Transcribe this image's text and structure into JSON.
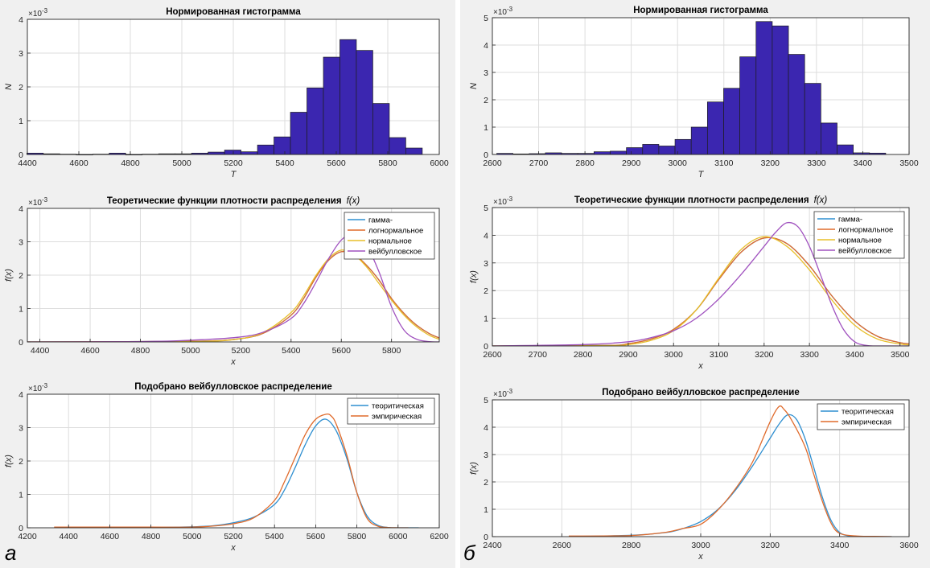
{
  "panel_labels": {
    "left": "а",
    "right": "б"
  },
  "exponent_label": "×10",
  "exponent_power": "-3",
  "colors": {
    "bar_fill": "#3b26b0",
    "bar_edge": "#1e1e1e",
    "series": [
      "#2f8fd0",
      "#e06b2c",
      "#e8bf2a",
      "#a052bf"
    ],
    "series2": [
      "#2f8fd0",
      "#e06b2c"
    ]
  },
  "chart_data": [
    {
      "id": "a-hist",
      "type": "bar",
      "title": "Нормированная гистограмма",
      "xlabel": "T",
      "ylabel": "N",
      "xlim": [
        4400,
        6000
      ],
      "ylim": [
        0,
        4
      ],
      "xticks": [
        4400,
        4600,
        4800,
        5000,
        5200,
        5400,
        5600,
        5800,
        6000
      ],
      "yticks": [
        0,
        1,
        2,
        3,
        4
      ],
      "bin_width": 64,
      "bins": [
        [
          4430,
          0.04
        ],
        [
          4494,
          0.02
        ],
        [
          4558,
          0.01
        ],
        [
          4622,
          0.0
        ],
        [
          4686,
          0.01
        ],
        [
          4750,
          0.04
        ],
        [
          4814,
          0.0
        ],
        [
          4878,
          0.01
        ],
        [
          4942,
          0.02
        ],
        [
          5006,
          0.02
        ],
        [
          5070,
          0.04
        ],
        [
          5134,
          0.07
        ],
        [
          5198,
          0.13
        ],
        [
          5262,
          0.08
        ],
        [
          5326,
          0.28
        ],
        [
          5390,
          0.52
        ],
        [
          5454,
          1.25
        ],
        [
          5518,
          1.97
        ],
        [
          5582,
          2.88
        ],
        [
          5646,
          3.4
        ],
        [
          5710,
          3.08
        ],
        [
          5774,
          1.51
        ],
        [
          5838,
          0.5
        ],
        [
          5902,
          0.19
        ]
      ]
    },
    {
      "id": "a-theory",
      "type": "line",
      "title": "Теоретические функции плотности распределения",
      "title_math": "f(x)",
      "xlabel": "x",
      "ylabel": "f(x)",
      "xlim": [
        4350,
        5990
      ],
      "ylim": [
        0,
        4
      ],
      "xticks": [
        4400,
        4600,
        4800,
        5000,
        5200,
        5400,
        5600,
        5800
      ],
      "yticks": [
        0,
        1,
        2,
        3,
        4
      ],
      "legend": [
        "гамма-",
        "логнормальное",
        "нормальное",
        "вейбулловское"
      ],
      "legend_position": "top-right",
      "series": [
        {
          "name": "гамма-",
          "x": [
            4350,
            5000,
            5200,
            5300,
            5400,
            5450,
            5500,
            5550,
            5600,
            5650,
            5700,
            5750,
            5800,
            5850,
            5900,
            5950,
            5990
          ],
          "y": [
            0,
            0.02,
            0.1,
            0.3,
            0.8,
            1.3,
            1.95,
            2.45,
            2.7,
            2.62,
            2.3,
            1.85,
            1.3,
            0.85,
            0.5,
            0.25,
            0.12
          ]
        },
        {
          "name": "логнормальное",
          "x": [
            4350,
            5000,
            5200,
            5300,
            5400,
            5450,
            5500,
            5550,
            5600,
            5650,
            5700,
            5750,
            5800,
            5850,
            5900,
            5950,
            5990
          ],
          "y": [
            0,
            0.02,
            0.1,
            0.3,
            0.8,
            1.3,
            1.95,
            2.45,
            2.7,
            2.62,
            2.3,
            1.85,
            1.3,
            0.85,
            0.5,
            0.25,
            0.12
          ]
        },
        {
          "name": "нормальное",
          "x": [
            4350,
            5000,
            5200,
            5300,
            5400,
            5450,
            5500,
            5550,
            5600,
            5650,
            5700,
            5750,
            5800,
            5850,
            5900,
            5950,
            5990
          ],
          "y": [
            0,
            0.01,
            0.1,
            0.33,
            0.88,
            1.38,
            2.0,
            2.5,
            2.75,
            2.62,
            2.25,
            1.75,
            1.25,
            0.8,
            0.45,
            0.2,
            0.08
          ]
        },
        {
          "name": "вейбулловское",
          "x": [
            4350,
            4800,
            5000,
            5200,
            5300,
            5400,
            5450,
            5500,
            5550,
            5600,
            5650,
            5700,
            5750,
            5800,
            5850,
            5900,
            5950,
            5990
          ],
          "y": [
            0,
            0.01,
            0.05,
            0.15,
            0.32,
            0.7,
            1.15,
            1.8,
            2.5,
            3.05,
            3.25,
            2.9,
            2.1,
            1.05,
            0.35,
            0.08,
            0.01,
            0
          ]
        }
      ]
    },
    {
      "id": "a-fit",
      "type": "line",
      "title": "Подобрано вейбулловское распределение",
      "xlabel": "x",
      "ylabel": "f(x)",
      "xlim": [
        4200,
        6200
      ],
      "ylim": [
        0,
        4
      ],
      "xticks": [
        4200,
        4400,
        4600,
        4800,
        5000,
        5200,
        5400,
        5600,
        5800,
        6000,
        6200
      ],
      "yticks": [
        0,
        1,
        2,
        3,
        4
      ],
      "legend": [
        "теоритическая",
        "эмпирическая"
      ],
      "legend_position": "top-right",
      "series": [
        {
          "name": "теоритическая",
          "x": [
            4330,
            4800,
            5000,
            5100,
            5200,
            5300,
            5400,
            5450,
            5500,
            5550,
            5600,
            5650,
            5700,
            5750,
            5800,
            5850,
            5900,
            5950,
            6000,
            6100
          ],
          "y": [
            0,
            0.01,
            0.03,
            0.06,
            0.15,
            0.32,
            0.7,
            1.15,
            1.8,
            2.5,
            3.05,
            3.25,
            2.9,
            2.1,
            1.05,
            0.35,
            0.08,
            0.01,
            0,
            0
          ]
        },
        {
          "name": "эмпирическая",
          "x": [
            4330,
            4800,
            5000,
            5100,
            5200,
            5300,
            5400,
            5450,
            5500,
            5550,
            5600,
            5650,
            5675,
            5700,
            5750,
            5800,
            5850,
            5900,
            5950,
            6000,
            6050
          ],
          "y": [
            0.02,
            0.02,
            0.02,
            0.05,
            0.12,
            0.3,
            0.82,
            1.4,
            2.1,
            2.8,
            3.25,
            3.4,
            3.35,
            3.1,
            2.2,
            1.05,
            0.28,
            0.05,
            0.01,
            0,
            0
          ]
        }
      ]
    },
    {
      "id": "b-hist",
      "type": "bar",
      "title": "Нормированная гистограмма",
      "xlabel": "T",
      "ylabel": "N",
      "xlim": [
        2600,
        3500
      ],
      "ylim": [
        0,
        5
      ],
      "xticks": [
        2600,
        2700,
        2800,
        2900,
        3000,
        3100,
        3200,
        3300,
        3400,
        3500
      ],
      "yticks": [
        0,
        1,
        2,
        3,
        4,
        5
      ],
      "bin_width": 35,
      "bins": [
        [
          2627,
          0.04
        ],
        [
          2662,
          0.02
        ],
        [
          2697,
          0.03
        ],
        [
          2732,
          0.06
        ],
        [
          2767,
          0.04
        ],
        [
          2802,
          0.04
        ],
        [
          2837,
          0.1
        ],
        [
          2872,
          0.12
        ],
        [
          2907,
          0.25
        ],
        [
          2942,
          0.37
        ],
        [
          2977,
          0.31
        ],
        [
          3012,
          0.55
        ],
        [
          3047,
          1.0
        ],
        [
          3082,
          1.92
        ],
        [
          3117,
          2.42
        ],
        [
          3152,
          3.57
        ],
        [
          3187,
          4.86
        ],
        [
          3222,
          4.7
        ],
        [
          3257,
          3.66
        ],
        [
          3292,
          2.6
        ],
        [
          3327,
          1.15
        ],
        [
          3362,
          0.35
        ],
        [
          3397,
          0.06
        ],
        [
          3432,
          0.05
        ]
      ]
    },
    {
      "id": "b-theory",
      "type": "line",
      "title": "Теоретические функции плотности распределения",
      "title_math": "f(x)",
      "xlabel": "x",
      "ylabel": "f(x)",
      "xlim": [
        2600,
        3520
      ],
      "ylim": [
        0,
        5
      ],
      "xticks": [
        2600,
        2700,
        2800,
        2900,
        3000,
        3100,
        3200,
        3300,
        3400,
        3500
      ],
      "yticks": [
        0,
        1,
        2,
        3,
        4,
        5
      ],
      "legend": [
        "гамма-",
        "логнормальное",
        "нормальное",
        "вейбулловское"
      ],
      "legend_position": "top-right",
      "series": [
        {
          "name": "гамма-",
          "x": [
            2600,
            2850,
            2900,
            2950,
            3000,
            3050,
            3100,
            3150,
            3200,
            3250,
            3300,
            3350,
            3400,
            3450,
            3500,
            3520
          ],
          "y": [
            0,
            0.02,
            0.08,
            0.25,
            0.6,
            1.3,
            2.4,
            3.4,
            3.9,
            3.7,
            2.9,
            1.8,
            0.9,
            0.35,
            0.12,
            0.08
          ]
        },
        {
          "name": "логнормальное",
          "x": [
            2600,
            2850,
            2900,
            2950,
            3000,
            3050,
            3100,
            3150,
            3200,
            3250,
            3300,
            3350,
            3400,
            3450,
            3500,
            3520
          ],
          "y": [
            0,
            0.02,
            0.08,
            0.25,
            0.6,
            1.3,
            2.4,
            3.4,
            3.9,
            3.7,
            2.9,
            1.8,
            0.9,
            0.35,
            0.12,
            0.08
          ]
        },
        {
          "name": "нормальное",
          "x": [
            2600,
            2850,
            2900,
            2950,
            3000,
            3050,
            3100,
            3150,
            3200,
            3250,
            3300,
            3350,
            3400,
            3450,
            3500,
            3520
          ],
          "y": [
            0,
            0.01,
            0.05,
            0.2,
            0.55,
            1.3,
            2.45,
            3.5,
            3.95,
            3.6,
            2.75,
            1.65,
            0.75,
            0.25,
            0.07,
            0.04
          ]
        },
        {
          "name": "вейбулловское",
          "x": [
            2600,
            2800,
            2900,
            2950,
            3000,
            3050,
            3100,
            3150,
            3200,
            3225,
            3250,
            3275,
            3300,
            3325,
            3350,
            3375,
            3400,
            3425,
            3450,
            3520
          ],
          "y": [
            0,
            0.05,
            0.15,
            0.3,
            0.55,
            1.0,
            1.7,
            2.6,
            3.6,
            4.1,
            4.45,
            4.3,
            3.6,
            2.55,
            1.45,
            0.6,
            0.15,
            0.02,
            0,
            0
          ]
        }
      ]
    },
    {
      "id": "b-fit",
      "type": "line",
      "title": "Подобрано вейбулловское распределение",
      "xlabel": "x",
      "ylabel": "f(x)",
      "xlim": [
        2400,
        3600
      ],
      "ylim": [
        0,
        5
      ],
      "xticks": [
        2400,
        2600,
        2800,
        3000,
        3200,
        3400,
        3600
      ],
      "yticks": [
        0,
        1,
        2,
        3,
        4,
        5
      ],
      "legend": [
        "теоритическая",
        "эмпирическая"
      ],
      "legend_position": "top-right",
      "series": [
        {
          "name": "теоритическая",
          "x": [
            2620,
            2800,
            2900,
            2950,
            3000,
            3050,
            3100,
            3150,
            3200,
            3225,
            3250,
            3275,
            3300,
            3325,
            3350,
            3375,
            3400,
            3425,
            3450,
            3500,
            3550
          ],
          "y": [
            0,
            0.05,
            0.15,
            0.3,
            0.55,
            1.0,
            1.7,
            2.6,
            3.6,
            4.1,
            4.45,
            4.3,
            3.6,
            2.55,
            1.45,
            0.6,
            0.15,
            0.03,
            0,
            0,
            0
          ]
        },
        {
          "name": "эмпирическая",
          "x": [
            2620,
            2800,
            2900,
            2950,
            3000,
            3050,
            3100,
            3150,
            3200,
            3225,
            3240,
            3260,
            3300,
            3325,
            3350,
            3375,
            3400,
            3450,
            3500,
            3550
          ],
          "y": [
            0.02,
            0.04,
            0.16,
            0.3,
            0.45,
            0.98,
            1.75,
            2.75,
            4.2,
            4.75,
            4.65,
            4.3,
            3.3,
            2.3,
            1.3,
            0.5,
            0.12,
            0.02,
            0.01,
            0
          ]
        }
      ]
    }
  ]
}
